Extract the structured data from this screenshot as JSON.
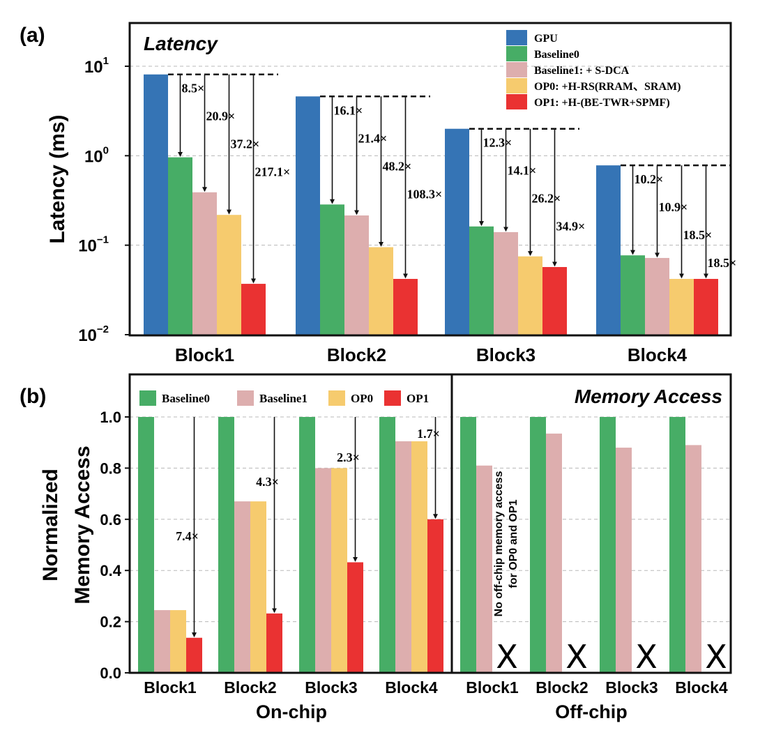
{
  "colors": {
    "GPU": "#3574b5",
    "Baseline0": "#47ad66",
    "Baseline1": "#ddaeae",
    "OP0": "#f6cb6e",
    "OP1": "#ea3232"
  },
  "chart_data": [
    {
      "panel": "(a)",
      "type": "bar",
      "title": "Latency",
      "ylabel": "Latency (ms)",
      "yscale": "log",
      "ylim": [
        0.01,
        30
      ],
      "yticks": [
        {
          "base": "10",
          "exp": "1"
        },
        {
          "base": "10",
          "exp": "0"
        },
        {
          "base": "10",
          "exp": "−1"
        },
        {
          "base": "10",
          "exp": "−2"
        }
      ],
      "grid": true,
      "legend_position": "top-right",
      "categories": [
        "Block1",
        "Block2",
        "Block3",
        "Block4"
      ],
      "series": [
        {
          "name": "GPU",
          "color_key": "GPU",
          "values": [
            8.1,
            4.6,
            2.0,
            0.78
          ]
        },
        {
          "name": "Baseline0",
          "color_key": "Baseline0",
          "values": [
            0.96,
            0.285,
            0.162,
            0.077
          ]
        },
        {
          "name": "Baseline1: + S-DCA",
          "color_key": "Baseline1",
          "values": [
            0.39,
            0.215,
            0.14,
            0.072
          ]
        },
        {
          "name": "OP0: +H-RS(RRAM、SRAM)",
          "color_key": "OP0",
          "values": [
            0.218,
            0.095,
            0.075,
            0.042
          ]
        },
        {
          "name": "OP1: +H-(BE-TWR+SPMF)",
          "color_key": "OP1",
          "values": [
            0.037,
            0.042,
            0.057,
            0.042
          ]
        }
      ],
      "speedups": [
        [
          "8.5×",
          "20.9×",
          "37.2×",
          "217.1×"
        ],
        [
          "16.1×",
          "21.4×",
          "48.2×",
          "108.3×"
        ],
        [
          "12.3×",
          "14.1×",
          "26.2×",
          "34.9×"
        ],
        [
          "10.2×",
          "10.9×",
          "18.5×",
          "18.5×"
        ]
      ]
    },
    {
      "panel": "(b)",
      "type": "bar",
      "title": "Memory Access",
      "ylabel": [
        "Normalized",
        "Memory Access"
      ],
      "ylim": [
        0,
        1.0
      ],
      "yticks": [
        "0.0",
        "0.2",
        "0.4",
        "0.6",
        "0.8",
        "1.0"
      ],
      "grid": true,
      "legend_position": "top-left",
      "legend": [
        "Baseline0",
        "Baseline1",
        "OP0",
        "OP1"
      ],
      "groups": [
        {
          "name": "On-chip",
          "categories": [
            "Block1",
            "Block2",
            "Block3",
            "Block4"
          ],
          "series": [
            {
              "name": "Baseline0",
              "color_key": "Baseline0",
              "values": [
                1.0,
                1.0,
                1.0,
                1.0
              ]
            },
            {
              "name": "Baseline1",
              "color_key": "Baseline1",
              "values": [
                0.245,
                0.67,
                0.8,
                0.905
              ]
            },
            {
              "name": "OP0",
              "color_key": "OP0",
              "values": [
                0.245,
                0.67,
                0.8,
                0.905
              ]
            },
            {
              "name": "OP1",
              "color_key": "OP1",
              "values": [
                0.137,
                0.232,
                0.432,
                0.6
              ]
            }
          ],
          "reductions": [
            "7.4×",
            "4.3×",
            "2.3×",
            "1.7×"
          ]
        },
        {
          "name": "Off-chip",
          "categories": [
            "Block1",
            "Block2",
            "Block3",
            "Block4"
          ],
          "series": [
            {
              "name": "Baseline0",
              "color_key": "Baseline0",
              "values": [
                1.0,
                1.0,
                1.0,
                1.0
              ]
            },
            {
              "name": "Baseline1",
              "color_key": "Baseline1",
              "values": [
                0.81,
                0.935,
                0.88,
                0.89
              ]
            }
          ],
          "note": [
            "No off-chip memory access",
            "for OP0 and OP1"
          ],
          "na_mark": "X"
        }
      ]
    }
  ]
}
